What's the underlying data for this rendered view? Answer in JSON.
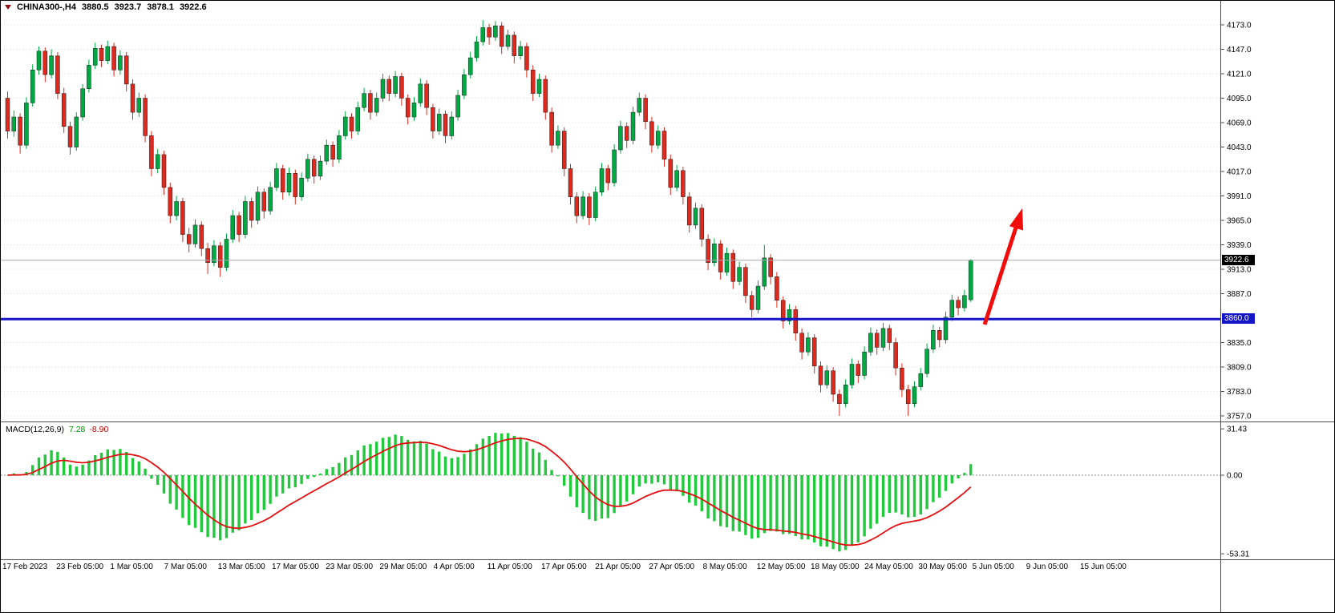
{
  "header": {
    "symbol": "CHINA300-,H4",
    "open": "3880.5",
    "high": "3923.7",
    "low": "3878.1",
    "close": "3922.6"
  },
  "colors": {
    "bull": "#00a843",
    "bear": "#dc2a1e",
    "candle_outline": "#1a1a1a",
    "grid": "#dcdcdc",
    "bid_line": "#a8a8a8",
    "hline": "#1414c8",
    "arrow": "#f20d0d",
    "macd_bar": "#21c93c",
    "macd_signal": "#e01010",
    "separator": "#4d4d4d",
    "axis_text": "#000000"
  },
  "chart_data": {
    "type": "candlestick",
    "title": "CHINA300-,H4",
    "timeframe": "H4",
    "y_axis_labels": [
      4173,
      4147,
      4121,
      4095,
      4069,
      4043,
      4017,
      3991,
      3965,
      3939,
      3913,
      3887,
      3835,
      3809,
      3783,
      3757
    ],
    "x_axis_labels": [
      "17 Feb 2023",
      "23 Feb 05:00",
      "1 Mar 05:00",
      "7 Mar 05:00",
      "13 Mar 05:00",
      "17 Mar 05:00",
      "23 Mar 05:00",
      "29 Mar 05:00",
      "4 Apr 05:00",
      "11 Apr 05:00",
      "17 Apr 05:00",
      "21 Apr 05:00",
      "27 Apr 05:00",
      "8 May 05:00",
      "12 May 05:00",
      "18 May 05:00",
      "24 May 05:00",
      "30 May 05:00",
      "5 Jun 05:00",
      "9 Jun 05:00",
      "15 Jun 05:00"
    ],
    "candles": [
      [
        4095,
        4102,
        4052,
        4060
      ],
      [
        4060,
        4082,
        4054,
        4075
      ],
      [
        4075,
        4079,
        4036,
        4045
      ],
      [
        4045,
        4096,
        4041,
        4090
      ],
      [
        4090,
        4131,
        4086,
        4125
      ],
      [
        4125,
        4150,
        4120,
        4145
      ],
      [
        4145,
        4149,
        4112,
        4120
      ],
      [
        4120,
        4147,
        4116,
        4140
      ],
      [
        4140,
        4144,
        4094,
        4100
      ],
      [
        4100,
        4106,
        4058,
        4065
      ],
      [
        4065,
        4070,
        4035,
        4043
      ],
      [
        4043,
        4080,
        4039,
        4075
      ],
      [
        4075,
        4110,
        4071,
        4105
      ],
      [
        4105,
        4136,
        4101,
        4130
      ],
      [
        4130,
        4154,
        4126,
        4148
      ],
      [
        4148,
        4152,
        4128,
        4135
      ],
      [
        4135,
        4156,
        4131,
        4150
      ],
      [
        4150,
        4154,
        4118,
        4125
      ],
      [
        4125,
        4146,
        4120,
        4140
      ],
      [
        4140,
        4144,
        4102,
        4110
      ],
      [
        4110,
        4115,
        4072,
        4080
      ],
      [
        4080,
        4101,
        4075,
        4095
      ],
      [
        4095,
        4099,
        4048,
        4055
      ],
      [
        4055,
        4060,
        4012,
        4020
      ],
      [
        4020,
        4041,
        4015,
        4035
      ],
      [
        4035,
        4039,
        3992,
        4000
      ],
      [
        4000,
        4005,
        3962,
        3970
      ],
      [
        3970,
        3991,
        3965,
        3985
      ],
      [
        3985,
        3989,
        3942,
        3950
      ],
      [
        3950,
        3957,
        3931,
        3940
      ],
      [
        3940,
        3966,
        3936,
        3960
      ],
      [
        3960,
        3964,
        3927,
        3935
      ],
      [
        3935,
        3941,
        3908,
        3920
      ],
      [
        3920,
        3944,
        3916,
        3938
      ],
      [
        3938,
        3942,
        3905,
        3915
      ],
      [
        3915,
        3951,
        3911,
        3945
      ],
      [
        3945,
        3976,
        3941,
        3970
      ],
      [
        3970,
        3974,
        3942,
        3950
      ],
      [
        3950,
        3991,
        3946,
        3985
      ],
      [
        3985,
        3989,
        3957,
        3965
      ],
      [
        3965,
        4001,
        3961,
        3995
      ],
      [
        3995,
        3999,
        3967,
        3975
      ],
      [
        3975,
        4006,
        3971,
        4000
      ],
      [
        4000,
        4026,
        3996,
        4020
      ],
      [
        4020,
        4024,
        3987,
        3995
      ],
      [
        3995,
        4021,
        3991,
        4015
      ],
      [
        4015,
        4019,
        3982,
        3990
      ],
      [
        3990,
        4016,
        3986,
        4010
      ],
      [
        4010,
        4036,
        4006,
        4030
      ],
      [
        4030,
        4034,
        4004,
        4012
      ],
      [
        4012,
        4034,
        4008,
        4028
      ],
      [
        4028,
        4051,
        4024,
        4045
      ],
      [
        4045,
        4049,
        4022,
        4030
      ],
      [
        4030,
        4061,
        4026,
        4055
      ],
      [
        4055,
        4081,
        4051,
        4075
      ],
      [
        4075,
        4079,
        4052,
        4060
      ],
      [
        4060,
        4091,
        4056,
        4085
      ],
      [
        4085,
        4106,
        4081,
        4100
      ],
      [
        4100,
        4104,
        4072,
        4080
      ],
      [
        4080,
        4101,
        4076,
        4095
      ],
      [
        4095,
        4121,
        4091,
        4115
      ],
      [
        4115,
        4119,
        4092,
        4100
      ],
      [
        4100,
        4124,
        4096,
        4118
      ],
      [
        4118,
        4122,
        4087,
        4095
      ],
      [
        4095,
        4099,
        4067,
        4075
      ],
      [
        4075,
        4096,
        4071,
        4090
      ],
      [
        4090,
        4116,
        4086,
        4110
      ],
      [
        4110,
        4114,
        4077,
        4085
      ],
      [
        4085,
        4089,
        4052,
        4060
      ],
      [
        4060,
        4084,
        4056,
        4078
      ],
      [
        4078,
        4082,
        4047,
        4055
      ],
      [
        4055,
        4081,
        4051,
        4075
      ],
      [
        4075,
        4104,
        4071,
        4098
      ],
      [
        4098,
        4126,
        4094,
        4120
      ],
      [
        4120,
        4144,
        4116,
        4138
      ],
      [
        4138,
        4161,
        4134,
        4155
      ],
      [
        4155,
        4178,
        4151,
        4170
      ],
      [
        4170,
        4174,
        4152,
        4160
      ],
      [
        4160,
        4177,
        4156,
        4172
      ],
      [
        4172,
        4176,
        4142,
        4150
      ],
      [
        4150,
        4168,
        4146,
        4162
      ],
      [
        4162,
        4166,
        4132,
        4140
      ],
      [
        4140,
        4156,
        4136,
        4150
      ],
      [
        4150,
        4154,
        4117,
        4125
      ],
      [
        4125,
        4130,
        4092,
        4100
      ],
      [
        4100,
        4121,
        4096,
        4115
      ],
      [
        4115,
        4119,
        4072,
        4080
      ],
      [
        4080,
        4085,
        4037,
        4045
      ],
      [
        4045,
        4066,
        4041,
        4060
      ],
      [
        4060,
        4064,
        4012,
        4020
      ],
      [
        4020,
        4025,
        3982,
        3990
      ],
      [
        3990,
        3995,
        3962,
        3970
      ],
      [
        3970,
        3996,
        3966,
        3990
      ],
      [
        3990,
        3994,
        3960,
        3968
      ],
      [
        3968,
        4001,
        3964,
        3995
      ],
      [
        3995,
        4026,
        3991,
        4020
      ],
      [
        4020,
        4024,
        3997,
        4005
      ],
      [
        4005,
        4046,
        4001,
        4040
      ],
      [
        4040,
        4071,
        4036,
        4065
      ],
      [
        4065,
        4069,
        4042,
        4050
      ],
      [
        4050,
        4086,
        4046,
        4080
      ],
      [
        4080,
        4101,
        4076,
        4095
      ],
      [
        4095,
        4099,
        4062,
        4070
      ],
      [
        4070,
        4075,
        4037,
        4045
      ],
      [
        4045,
        4066,
        4041,
        4060
      ],
      [
        4060,
        4064,
        4022,
        4030
      ],
      [
        4030,
        4035,
        3992,
        4000
      ],
      [
        4000,
        4024,
        3996,
        4018
      ],
      [
        4018,
        4022,
        3982,
        3990
      ],
      [
        3990,
        3995,
        3952,
        3960
      ],
      [
        3960,
        3984,
        3956,
        3978
      ],
      [
        3978,
        3982,
        3937,
        3945
      ],
      [
        3945,
        3950,
        3912,
        3920
      ],
      [
        3920,
        3946,
        3916,
        3940
      ],
      [
        3940,
        3944,
        3902,
        3910
      ],
      [
        3910,
        3936,
        3906,
        3930
      ],
      [
        3930,
        3934,
        3892,
        3900
      ],
      [
        3900,
        3921,
        3896,
        3915
      ],
      [
        3915,
        3919,
        3877,
        3885
      ],
      [
        3885,
        3890,
        3862,
        3870
      ],
      [
        3870,
        3901,
        3866,
        3895
      ],
      [
        3895,
        3939,
        3891,
        3925
      ],
      [
        3925,
        3929,
        3897,
        3905
      ],
      [
        3905,
        3910,
        3872,
        3880
      ],
      [
        3880,
        3884,
        3850,
        3858
      ],
      [
        3858,
        3876,
        3854,
        3870
      ],
      [
        3870,
        3874,
        3837,
        3845
      ],
      [
        3845,
        3850,
        3817,
        3825
      ],
      [
        3825,
        3846,
        3821,
        3840
      ],
      [
        3840,
        3844,
        3802,
        3810
      ],
      [
        3810,
        3815,
        3782,
        3790
      ],
      [
        3790,
        3811,
        3786,
        3805
      ],
      [
        3805,
        3809,
        3772,
        3780
      ],
      [
        3780,
        3785,
        3757,
        3770
      ],
      [
        3770,
        3796,
        3766,
        3790
      ],
      [
        3790,
        3818,
        3786,
        3812
      ],
      [
        3812,
        3816,
        3792,
        3800
      ],
      [
        3800,
        3831,
        3796,
        3825
      ],
      [
        3825,
        3851,
        3821,
        3845
      ],
      [
        3845,
        3849,
        3822,
        3830
      ],
      [
        3830,
        3856,
        3826,
        3850
      ],
      [
        3850,
        3854,
        3827,
        3835
      ],
      [
        3835,
        3840,
        3800,
        3808
      ],
      [
        3808,
        3813,
        3777,
        3785
      ],
      [
        3785,
        3790,
        3757,
        3770
      ],
      [
        3770,
        3794,
        3766,
        3788
      ],
      [
        3788,
        3808,
        3784,
        3802
      ],
      [
        3802,
        3834,
        3798,
        3828
      ],
      [
        3828,
        3854,
        3824,
        3848
      ],
      [
        3848,
        3852,
        3830,
        3838
      ],
      [
        3838,
        3868,
        3834,
        3862
      ],
      [
        3862,
        3886,
        3858,
        3880
      ],
      [
        3880,
        3884,
        3864,
        3872
      ],
      [
        3872,
        3891,
        3868,
        3885
      ],
      [
        3880.5,
        3923.7,
        3878.1,
        3922.6
      ]
    ],
    "overlays": {
      "support_line_price": 3860.0,
      "support_line_label": "3860.0",
      "bid_price": 3922.6,
      "bid_label": "3922.6",
      "arrow": "up-trend"
    },
    "indicator": {
      "type": "MACD",
      "label": "MACD(12,26,9)",
      "value_main": "7.28",
      "value_signal": "-8.90",
      "fast": 12,
      "slow": 26,
      "signal": 9,
      "axis_labels": [
        31.43,
        0,
        -53.31
      ],
      "range": [
        -53.31,
        31.43
      ]
    }
  }
}
